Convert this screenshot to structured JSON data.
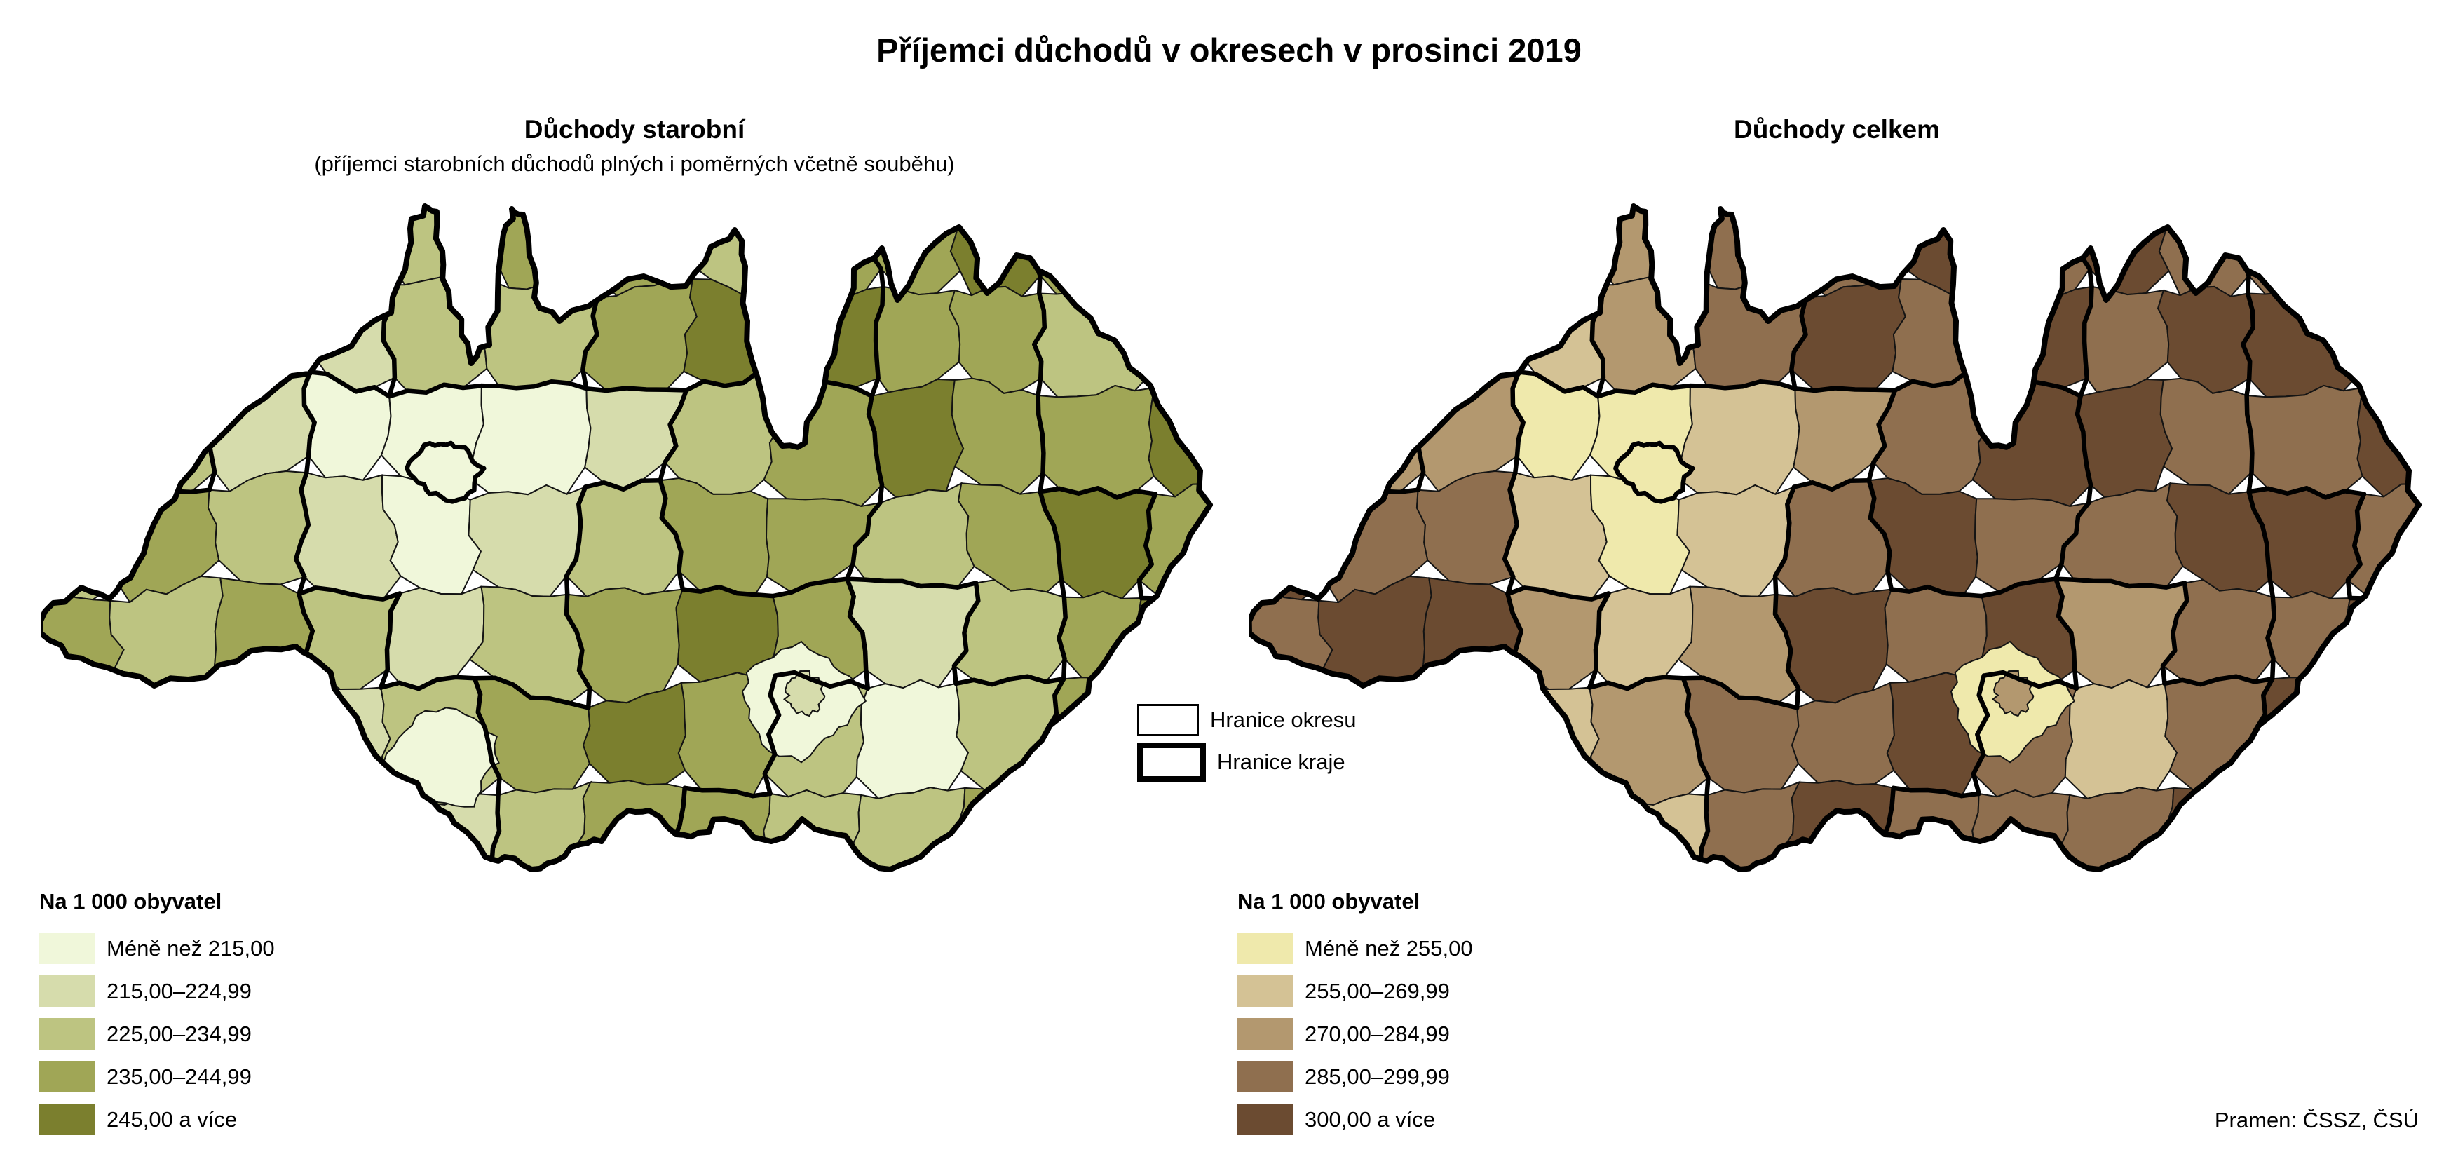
{
  "page": {
    "title": "Příjemci důchodů v okresech v prosinci 2019"
  },
  "maps": {
    "left": {
      "title": "Důchody starobní",
      "subtitle": "(příjemci starobních důchodů plných i poměrných včetně souběhu)",
      "legend": {
        "header": "Na 1 000 obyvatel",
        "classes": [
          {
            "label": "Méně než 215,00",
            "color": "#f0f7da"
          },
          {
            "label": "215,00–224,99",
            "color": "#d6dcac"
          },
          {
            "label": "225,00–234,99",
            "color": "#bdc481"
          },
          {
            "label": "235,00–244,99",
            "color": "#a0a656"
          },
          {
            "label": "245,00 a více",
            "color": "#7b7f2e"
          }
        ]
      },
      "district_classes": [
        [
          1,
          2,
          1,
          3,
          2,
          3,
          3,
          2,
          3,
          3,
          4,
          3,
          4
        ],
        [
          2,
          3,
          0,
          1,
          2,
          2,
          3,
          4,
          4,
          3,
          3,
          2,
          3
        ],
        [
          3,
          2,
          1,
          0,
          0,
          0,
          1,
          2,
          3,
          4,
          3,
          3,
          4
        ],
        [
          2,
          3,
          2,
          1,
          0,
          1,
          2,
          3,
          3,
          2,
          3,
          4,
          3
        ],
        [
          3,
          2,
          3,
          2,
          1,
          2,
          3,
          4,
          3,
          1,
          2,
          3,
          4
        ],
        [
          2,
          3,
          1,
          1,
          2,
          3,
          4,
          3,
          2,
          0,
          2,
          3,
          3
        ],
        [
          2,
          2,
          1,
          0,
          1,
          2,
          3,
          3,
          2,
          2,
          3,
          3,
          2
        ]
      ]
    },
    "right": {
      "title": "Důchody celkem",
      "subtitle": "",
      "legend": {
        "header": "Na 1 000 obyvatel",
        "classes": [
          {
            "label": "Méně než 255,00",
            "color": "#efe9ac"
          },
          {
            "label": "255,00–269,99",
            "color": "#d4c295"
          },
          {
            "label": "270,00–284,99",
            "color": "#b3986f"
          },
          {
            "label": "285,00–299,99",
            "color": "#8f6f4f"
          },
          {
            "label": "300,00 a více",
            "color": "#6b4b31"
          }
        ]
      },
      "district_classes": [
        [
          2,
          1,
          2,
          3,
          2,
          3,
          3,
          4,
          3,
          4,
          3,
          3,
          4
        ],
        [
          2,
          3,
          1,
          1,
          2,
          3,
          4,
          3,
          4,
          3,
          4,
          4,
          3
        ],
        [
          3,
          2,
          2,
          0,
          0,
          1,
          2,
          3,
          4,
          4,
          3,
          3,
          4
        ],
        [
          4,
          3,
          3,
          1,
          0,
          1,
          3,
          4,
          3,
          3,
          4,
          4,
          3
        ],
        [
          3,
          4,
          4,
          2,
          1,
          2,
          4,
          3,
          4,
          2,
          3,
          3,
          4
        ],
        [
          4,
          3,
          2,
          1,
          2,
          3,
          3,
          4,
          3,
          1,
          3,
          4,
          4
        ],
        [
          3,
          4,
          2,
          0,
          1,
          3,
          4,
          3,
          3,
          3,
          4,
          3,
          3
        ]
      ]
    }
  },
  "border_legend": {
    "okres_label": "Hranice okresu",
    "kraj_label": "Hranice kraje"
  },
  "source": {
    "label": "Pramen: ČSSZ, ČSÚ"
  },
  "map_style": {
    "district_border_color": "#141414",
    "region_border_color": "#000000",
    "country_border_color": "#000000"
  }
}
